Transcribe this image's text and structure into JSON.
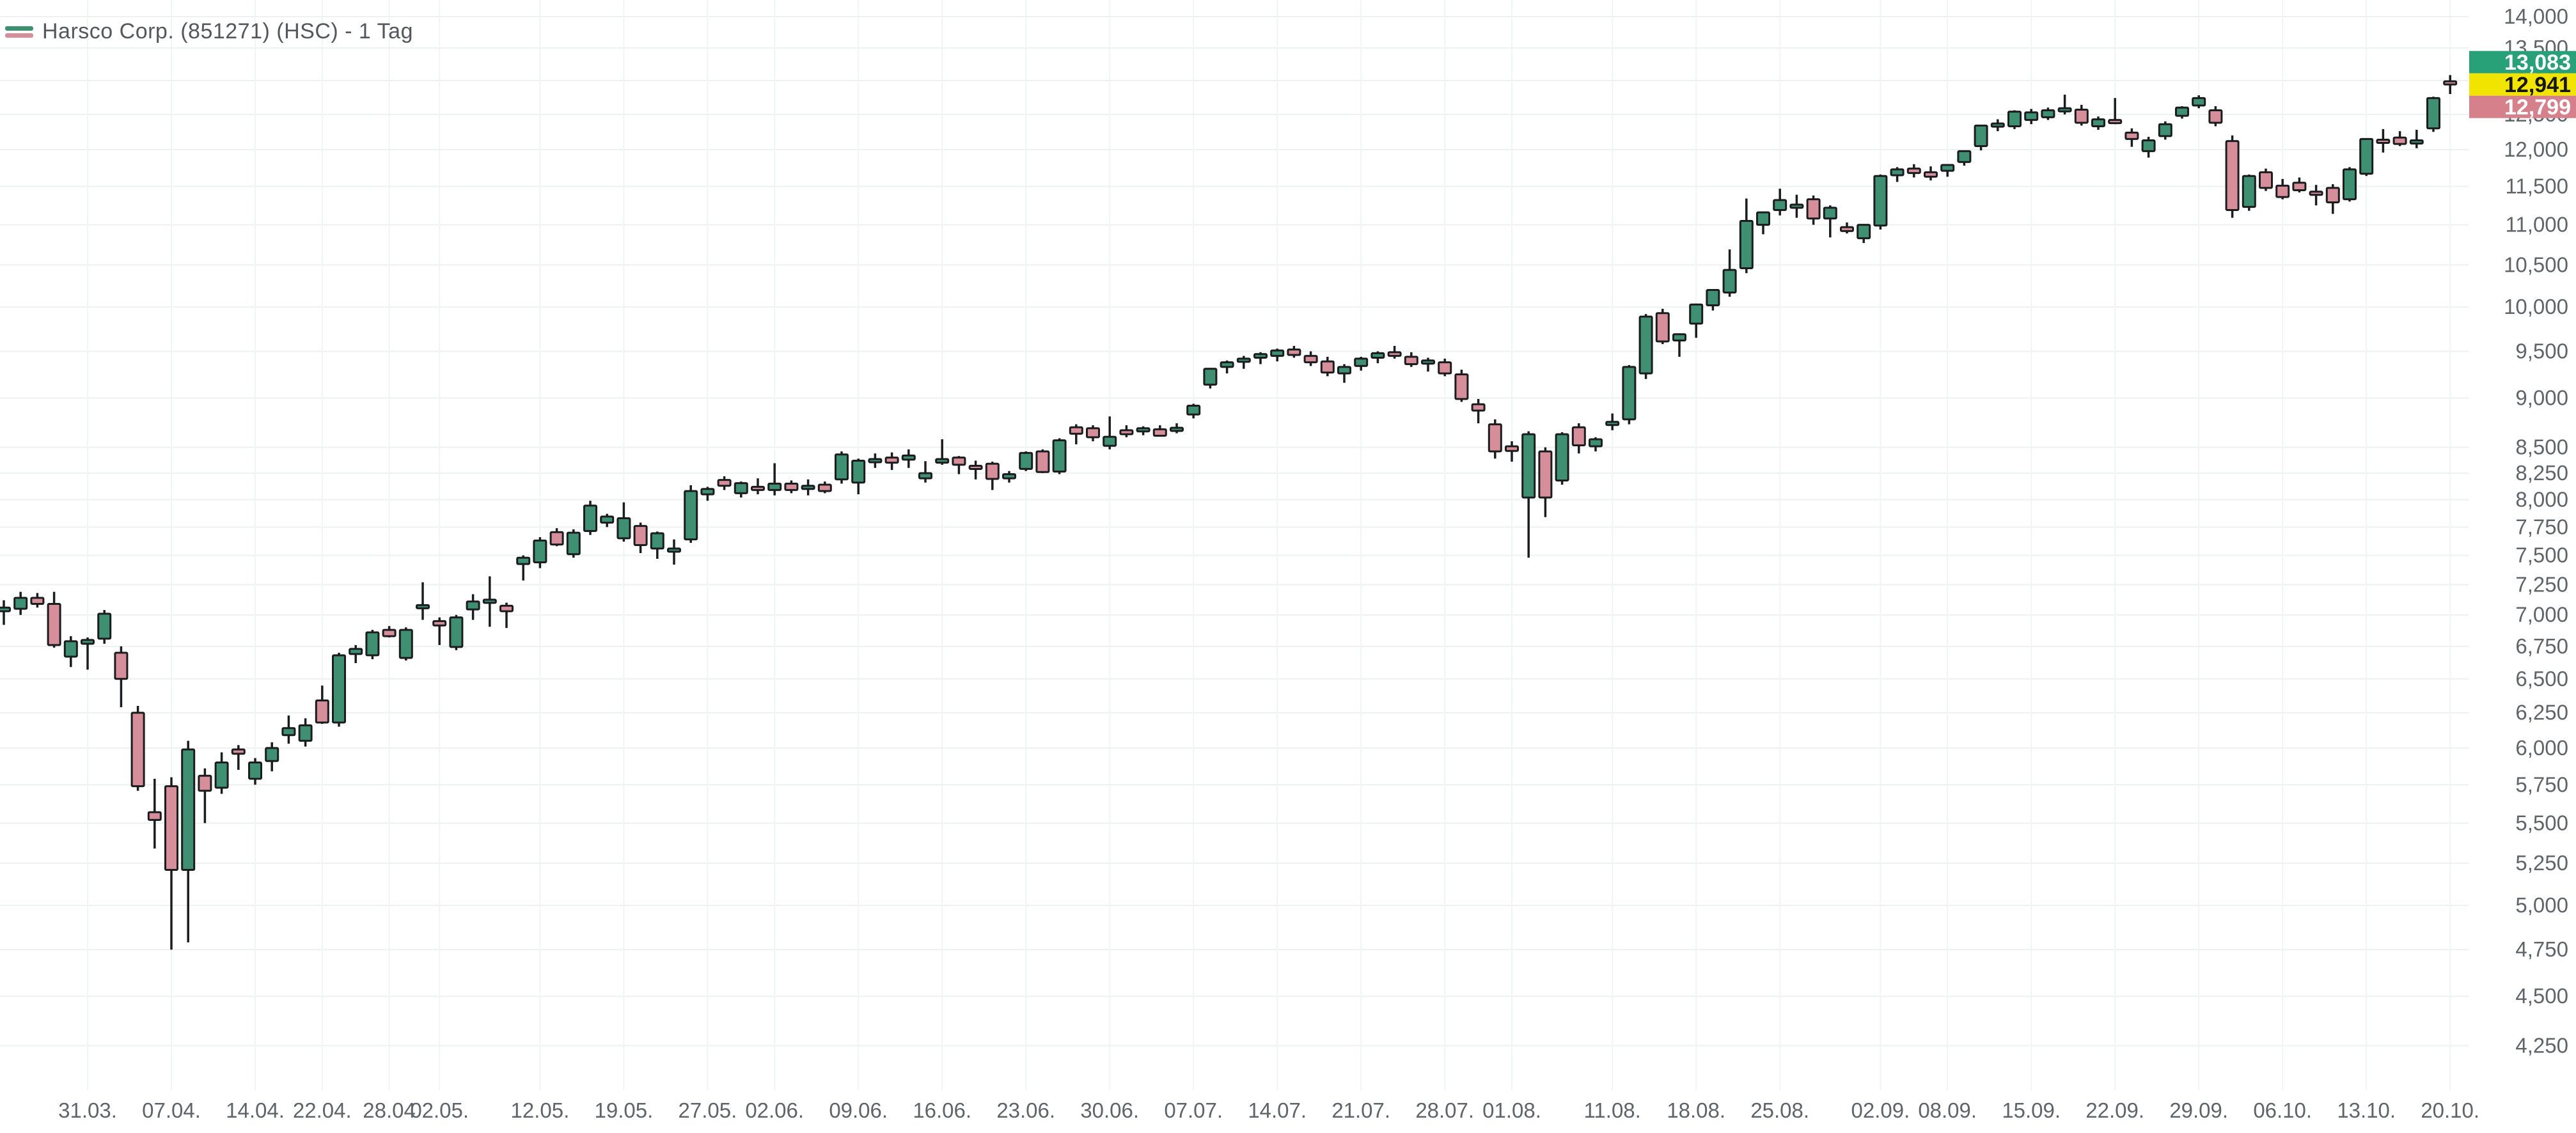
{
  "header": {
    "title": "Harsco Corp. (851271) (HSC) - 1 Tag"
  },
  "colors": {
    "up_fill": "#3f8f72",
    "down_fill": "#d68f9a",
    "outline": "#1b1c1e",
    "grid_h": "#edf1f0",
    "grid_v": "#f1f4f4",
    "axis_text": "#5f6468",
    "badge_high_bg": "#28a078",
    "badge_high_text": "#ffffff",
    "badge_last_bg": "#f0e400",
    "badge_last_text": "#161616",
    "badge_low_bg": "#d6808c",
    "badge_low_text": "#ffffff"
  },
  "price_badges": [
    {
      "type": "high",
      "label": "13,083",
      "value": 13083
    },
    {
      "type": "last",
      "label": "12,941",
      "value": 12941
    },
    {
      "type": "low",
      "label": "12,799",
      "value": 12799
    }
  ],
  "y_axis": {
    "scale": "log",
    "labels": [
      {
        "text": "14,000",
        "value": 14000
      },
      {
        "text": "13,500",
        "value": 13500
      },
      {
        "text": "13,000",
        "value": 13000
      },
      {
        "text": "12,500",
        "value": 12500
      },
      {
        "text": "12,000",
        "value": 12000
      },
      {
        "text": "11,500",
        "value": 11500
      },
      {
        "text": "11,000",
        "value": 11000
      },
      {
        "text": "10,500",
        "value": 10500
      },
      {
        "text": "10,000",
        "value": 10000
      },
      {
        "text": "9,500",
        "value": 9500
      },
      {
        "text": "9,000",
        "value": 9000
      },
      {
        "text": "8,500",
        "value": 8500
      },
      {
        "text": "8,250",
        "value": 8250
      },
      {
        "text": "8,000",
        "value": 8000
      },
      {
        "text": "7,750",
        "value": 7750
      },
      {
        "text": "7,500",
        "value": 7500
      },
      {
        "text": "7,250",
        "value": 7250
      },
      {
        "text": "7,000",
        "value": 7000
      },
      {
        "text": "6,750",
        "value": 6750
      },
      {
        "text": "6,500",
        "value": 6500
      },
      {
        "text": "6,250",
        "value": 6250
      },
      {
        "text": "6,000",
        "value": 6000
      },
      {
        "text": "5,750",
        "value": 5750
      },
      {
        "text": "5,500",
        "value": 5500
      },
      {
        "text": "5,250",
        "value": 5250
      },
      {
        "text": "5,000",
        "value": 5000
      },
      {
        "text": "4,750",
        "value": 4750
      },
      {
        "text": "4,500",
        "value": 4500
      },
      {
        "text": "4,250",
        "value": 4250
      }
    ]
  },
  "x_axis": {
    "ticks": [
      {
        "label": "31.03.",
        "index": 5
      },
      {
        "label": "07.04.",
        "index": 10
      },
      {
        "label": "14.04.",
        "index": 15
      },
      {
        "label": "22.04.",
        "index": 19
      },
      {
        "label": "28.04",
        "index": 23
      },
      {
        "label": "02.05.",
        "index": 26
      },
      {
        "label": "12.05.",
        "index": 32
      },
      {
        "label": "19.05.",
        "index": 37
      },
      {
        "label": "27.05.",
        "index": 42
      },
      {
        "label": "02.06.",
        "index": 46
      },
      {
        "label": "09.06.",
        "index": 51
      },
      {
        "label": "16.06.",
        "index": 56
      },
      {
        "label": "23.06.",
        "index": 61
      },
      {
        "label": "30.06.",
        "index": 66
      },
      {
        "label": "07.07.",
        "index": 71
      },
      {
        "label": "14.07.",
        "index": 76
      },
      {
        "label": "21.07.",
        "index": 81
      },
      {
        "label": "28.07.",
        "index": 86
      },
      {
        "label": "01.08.",
        "index": 90
      },
      {
        "label": "11.08.",
        "index": 96
      },
      {
        "label": "18.08.",
        "index": 101
      },
      {
        "label": "25.08.",
        "index": 106
      },
      {
        "label": "02.09.",
        "index": 112
      },
      {
        "label": "08.09.",
        "index": 116
      },
      {
        "label": "15.09.",
        "index": 121
      },
      {
        "label": "22.09.",
        "index": 126
      },
      {
        "label": "29.09.",
        "index": 131
      },
      {
        "label": "06.10.",
        "index": 136
      },
      {
        "label": "13.10.",
        "index": 141
      },
      {
        "label": "20.10.",
        "index": 146
      }
    ]
  },
  "chart_data": {
    "type": "candlestick",
    "title": "Harsco Corp. (851271) (HSC) - 1 Tag",
    "y_scale": "log",
    "ylim": [
      4100,
      14000
    ],
    "grid": true,
    "dates": [
      "24.03.",
      "25.03.",
      "26.03.",
      "27.03.",
      "28.03.",
      "31.03.",
      "01.04.",
      "02.04.",
      "03.04.",
      "04.04.",
      "07.04.",
      "08.04.",
      "09.04.",
      "10.04.",
      "11.04.",
      "14.04.",
      "15.04.",
      "16.04.",
      "17.04.",
      "22.04.",
      "23.04.",
      "24.04.",
      "25.04.",
      "28.04.",
      "29.04.",
      "30.04.",
      "02.05.",
      "05.05.",
      "06.05.",
      "07.05.",
      "08.05.",
      "09.05.",
      "12.05.",
      "13.05.",
      "14.05.",
      "15.05.",
      "16.05.",
      "19.05.",
      "20.05.",
      "21.05.",
      "22.05.",
      "23.05.",
      "27.05.",
      "28.05.",
      "29.05.",
      "30.05.",
      "02.06.",
      "03.06.",
      "04.06.",
      "05.06.",
      "06.06.",
      "09.06.",
      "10.06.",
      "11.06.",
      "12.06.",
      "13.06.",
      "16.06.",
      "17.06.",
      "18.06.",
      "19.06.",
      "20.06.",
      "23.06.",
      "24.06.",
      "25.06.",
      "26.06.",
      "27.06.",
      "30.06.",
      "01.07.",
      "02.07.",
      "03.07.",
      "04.07.",
      "07.07.",
      "08.07.",
      "09.07.",
      "10.07.",
      "11.07.",
      "14.07.",
      "15.07.",
      "16.07.",
      "17.07.",
      "18.07.",
      "21.07.",
      "22.07.",
      "23.07.",
      "24.07.",
      "25.07.",
      "28.07.",
      "29.07.",
      "30.07.",
      "31.07.",
      "01.08.",
      "04.08.",
      "05.08.",
      "06.08.",
      "07.08.",
      "08.08.",
      "11.08.",
      "12.08.",
      "13.08.",
      "14.08.",
      "15.08.",
      "18.08.",
      "19.08.",
      "20.08.",
      "21.08.",
      "22.08.",
      "25.08.",
      "26.08.",
      "27.08.",
      "28.08.",
      "29.08.",
      "01.09.",
      "02.09.",
      "03.09.",
      "04.09.",
      "05.09.",
      "08.09.",
      "09.09.",
      "10.09.",
      "11.09.",
      "12.09.",
      "15.09.",
      "16.09.",
      "17.09.",
      "18.09.",
      "19.09.",
      "22.09.",
      "23.09.",
      "24.09.",
      "25.09.",
      "26.09.",
      "29.09.",
      "30.09.",
      "01.10.",
      "02.10.",
      "03.10.",
      "06.10.",
      "07.10.",
      "08.10.",
      "09.10.",
      "10.10.",
      "13.10.",
      "14.10.",
      "15.10.",
      "16.10.",
      "17.10.",
      "20.10."
    ],
    "ohlc": [
      [
        7030,
        7120,
        6920,
        7060
      ],
      [
        7050,
        7190,
        7000,
        7140
      ],
      [
        7140,
        7180,
        7060,
        7090
      ],
      [
        7090,
        7190,
        6740,
        6760
      ],
      [
        6670,
        6830,
        6590,
        6790
      ],
      [
        6770,
        6820,
        6570,
        6800
      ],
      [
        6810,
        7040,
        6770,
        7010
      ],
      [
        6700,
        6750,
        6290,
        6500
      ],
      [
        6250,
        6300,
        5710,
        5740
      ],
      [
        5570,
        5790,
        5340,
        5520
      ],
      [
        5740,
        5800,
        4750,
        5210
      ],
      [
        5210,
        6050,
        4790,
        5990
      ],
      [
        5810,
        5860,
        5500,
        5710
      ],
      [
        5730,
        5970,
        5690,
        5900
      ],
      [
        5990,
        6020,
        5850,
        5960
      ],
      [
        5790,
        5930,
        5750,
        5900
      ],
      [
        5910,
        6040,
        5840,
        6000
      ],
      [
        6090,
        6230,
        6030,
        6140
      ],
      [
        6050,
        6210,
        6010,
        6160
      ],
      [
        6340,
        6450,
        6170,
        6180
      ],
      [
        6180,
        6700,
        6150,
        6680
      ],
      [
        6690,
        6760,
        6620,
        6730
      ],
      [
        6680,
        6880,
        6650,
        6860
      ],
      [
        6880,
        6910,
        6820,
        6830
      ],
      [
        6660,
        6900,
        6640,
        6880
      ],
      [
        7060,
        7270,
        6960,
        7080
      ],
      [
        6950,
        6980,
        6760,
        6915
      ],
      [
        6745,
        7000,
        6720,
        6980
      ],
      [
        7045,
        7170,
        6960,
        7110
      ],
      [
        7120,
        7320,
        6905,
        7125
      ],
      [
        7075,
        7100,
        6895,
        7030
      ],
      [
        7425,
        7500,
        7285,
        7480
      ],
      [
        7440,
        7660,
        7390,
        7630
      ],
      [
        7705,
        7740,
        7580,
        7595
      ],
      [
        7510,
        7730,
        7480,
        7700
      ],
      [
        7715,
        7990,
        7680,
        7945
      ],
      [
        7790,
        7870,
        7750,
        7845
      ],
      [
        7650,
        7975,
        7620,
        7830
      ],
      [
        7760,
        7790,
        7520,
        7590
      ],
      [
        7560,
        7710,
        7470,
        7695
      ],
      [
        7545,
        7640,
        7420,
        7560
      ],
      [
        7640,
        8135,
        7610,
        8080
      ],
      [
        8050,
        8120,
        7990,
        8100
      ],
      [
        8185,
        8220,
        8090,
        8130
      ],
      [
        8060,
        8170,
        8020,
        8155
      ],
      [
        8120,
        8200,
        8050,
        8100
      ],
      [
        8090,
        8345,
        8040,
        8150
      ],
      [
        8150,
        8180,
        8060,
        8090
      ],
      [
        8100,
        8190,
        8040,
        8130
      ],
      [
        8140,
        8170,
        8060,
        8080
      ],
      [
        8190,
        8460,
        8150,
        8430
      ],
      [
        8160,
        8390,
        8050,
        8370
      ],
      [
        8380,
        8440,
        8300,
        8385
      ],
      [
        8400,
        8450,
        8280,
        8350
      ],
      [
        8380,
        8480,
        8300,
        8420
      ],
      [
        8200,
        8365,
        8160,
        8250
      ],
      [
        8350,
        8580,
        8330,
        8385
      ],
      [
        8400,
        8415,
        8240,
        8330
      ],
      [
        8320,
        8370,
        8190,
        8290
      ],
      [
        8340,
        8360,
        8090,
        8195
      ],
      [
        8200,
        8270,
        8160,
        8240
      ],
      [
        8290,
        8460,
        8270,
        8445
      ],
      [
        8460,
        8480,
        8250,
        8260
      ],
      [
        8265,
        8590,
        8240,
        8570
      ],
      [
        8700,
        8730,
        8530,
        8635
      ],
      [
        8690,
        8720,
        8560,
        8600
      ],
      [
        8515,
        8810,
        8480,
        8605
      ],
      [
        8670,
        8720,
        8600,
        8630
      ],
      [
        8660,
        8710,
        8620,
        8690
      ],
      [
        8680,
        8720,
        8610,
        8615
      ],
      [
        8690,
        8740,
        8640,
        8695
      ],
      [
        8830,
        8940,
        8790,
        8920
      ],
      [
        9140,
        9320,
        9100,
        9310
      ],
      [
        9330,
        9400,
        9260,
        9380
      ],
      [
        9390,
        9450,
        9310,
        9420
      ],
      [
        9430,
        9490,
        9360,
        9470
      ],
      [
        9450,
        9530,
        9390,
        9510
      ],
      [
        9520,
        9560,
        9430,
        9460
      ],
      [
        9450,
        9500,
        9340,
        9380
      ],
      [
        9390,
        9440,
        9230,
        9270
      ],
      [
        9260,
        9360,
        9160,
        9330
      ],
      [
        9340,
        9440,
        9290,
        9420
      ],
      [
        9430,
        9500,
        9370,
        9480
      ],
      [
        9490,
        9560,
        9420,
        9450
      ],
      [
        9440,
        9490,
        9330,
        9360
      ],
      [
        9370,
        9430,
        9280,
        9400
      ],
      [
        9380,
        9420,
        9230,
        9260
      ],
      [
        9250,
        9300,
        8960,
        8990
      ],
      [
        8935,
        8990,
        8740,
        8870
      ],
      [
        8730,
        8780,
        8390,
        8460
      ],
      [
        8510,
        8560,
        8360,
        8465
      ],
      [
        8020,
        8660,
        7480,
        8630
      ],
      [
        8460,
        8500,
        7840,
        8020
      ],
      [
        8180,
        8650,
        8140,
        8630
      ],
      [
        8700,
        8740,
        8440,
        8520
      ],
      [
        8510,
        8600,
        8460,
        8580
      ],
      [
        8740,
        8840,
        8670,
        8755
      ],
      [
        8780,
        9350,
        8730,
        9330
      ],
      [
        9260,
        9920,
        9200,
        9890
      ],
      [
        9930,
        9980,
        9580,
        9610
      ],
      [
        9620,
        9700,
        9440,
        9690
      ],
      [
        9810,
        10040,
        9650,
        10030
      ],
      [
        10020,
        10210,
        9960,
        10200
      ],
      [
        10170,
        10690,
        10120,
        10440
      ],
      [
        10460,
        11340,
        10400,
        11050
      ],
      [
        11000,
        11170,
        10880,
        11160
      ],
      [
        11190,
        11470,
        11120,
        11320
      ],
      [
        11240,
        11390,
        11090,
        11260
      ],
      [
        11330,
        11380,
        11000,
        11080
      ],
      [
        11080,
        11250,
        10840,
        11220
      ],
      [
        10970,
        11030,
        10890,
        10920
      ],
      [
        10830,
        11010,
        10770,
        11000
      ],
      [
        10990,
        11660,
        10940,
        11640
      ],
      [
        11650,
        11760,
        11560,
        11730
      ],
      [
        11740,
        11800,
        11620,
        11680
      ],
      [
        11690,
        11770,
        11580,
        11630
      ],
      [
        11710,
        11800,
        11630,
        11790
      ],
      [
        11830,
        11990,
        11780,
        11980
      ],
      [
        12050,
        12350,
        11990,
        12340
      ],
      [
        12360,
        12430,
        12260,
        12370
      ],
      [
        12330,
        12560,
        12290,
        12540
      ],
      [
        12420,
        12580,
        12360,
        12530
      ],
      [
        12460,
        12600,
        12420,
        12560
      ],
      [
        12570,
        12790,
        12500,
        12590
      ],
      [
        12570,
        12640,
        12340,
        12380
      ],
      [
        12330,
        12470,
        12280,
        12430
      ],
      [
        12420,
        12740,
        12360,
        12390
      ],
      [
        12240,
        12300,
        12040,
        12150
      ],
      [
        11980,
        12180,
        11890,
        12130
      ],
      [
        12190,
        12400,
        12140,
        12360
      ],
      [
        12480,
        12620,
        12440,
        12600
      ],
      [
        12630,
        12780,
        12590,
        12740
      ],
      [
        12560,
        12620,
        12330,
        12380
      ],
      [
        12120,
        12200,
        11090,
        11190
      ],
      [
        11230,
        11660,
        11180,
        11640
      ],
      [
        11690,
        11740,
        11440,
        11480
      ],
      [
        11510,
        11600,
        11330,
        11360
      ],
      [
        11550,
        11620,
        11420,
        11450
      ],
      [
        11430,
        11520,
        11250,
        11390
      ],
      [
        11480,
        11530,
        11140,
        11290
      ],
      [
        11330,
        11760,
        11300,
        11730
      ],
      [
        11670,
        12160,
        11640,
        12150
      ],
      [
        12140,
        12290,
        11960,
        12110
      ],
      [
        12170,
        12260,
        12050,
        12080
      ],
      [
        12100,
        12280,
        12020,
        12130
      ],
      [
        12300,
        12760,
        12250,
        12740
      ],
      [
        12990,
        13083,
        12799,
        12941
      ]
    ]
  }
}
